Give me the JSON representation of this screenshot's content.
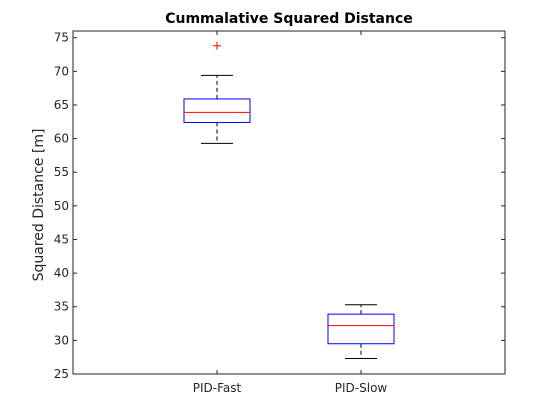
{
  "chart_data": {
    "type": "box",
    "title": "Cummalative Squared Distance",
    "xlabel": "",
    "ylabel": "Squared Distance [m]",
    "ylim": [
      25,
      76
    ],
    "yticks": [
      25,
      30,
      35,
      40,
      45,
      50,
      55,
      60,
      65,
      70,
      75
    ],
    "grid": false,
    "categories": [
      "PID-Fast",
      "PID-Slow"
    ],
    "boxes": [
      {
        "category": "PID-Fast",
        "whisker_low": 59.3,
        "q1": 62.4,
        "median": 63.9,
        "q3": 65.9,
        "whisker_high": 69.4,
        "outliers": [
          73.8
        ]
      },
      {
        "category": "PID-Slow",
        "whisker_low": 27.3,
        "q1": 29.5,
        "median": 32.2,
        "q3": 33.9,
        "whisker_high": 35.3,
        "outliers": []
      }
    ],
    "colors": {
      "box": "#0000ff",
      "median": "#ff0000",
      "whisker": "#000000",
      "outlier": "#ff0000",
      "axis": "#262626"
    }
  }
}
